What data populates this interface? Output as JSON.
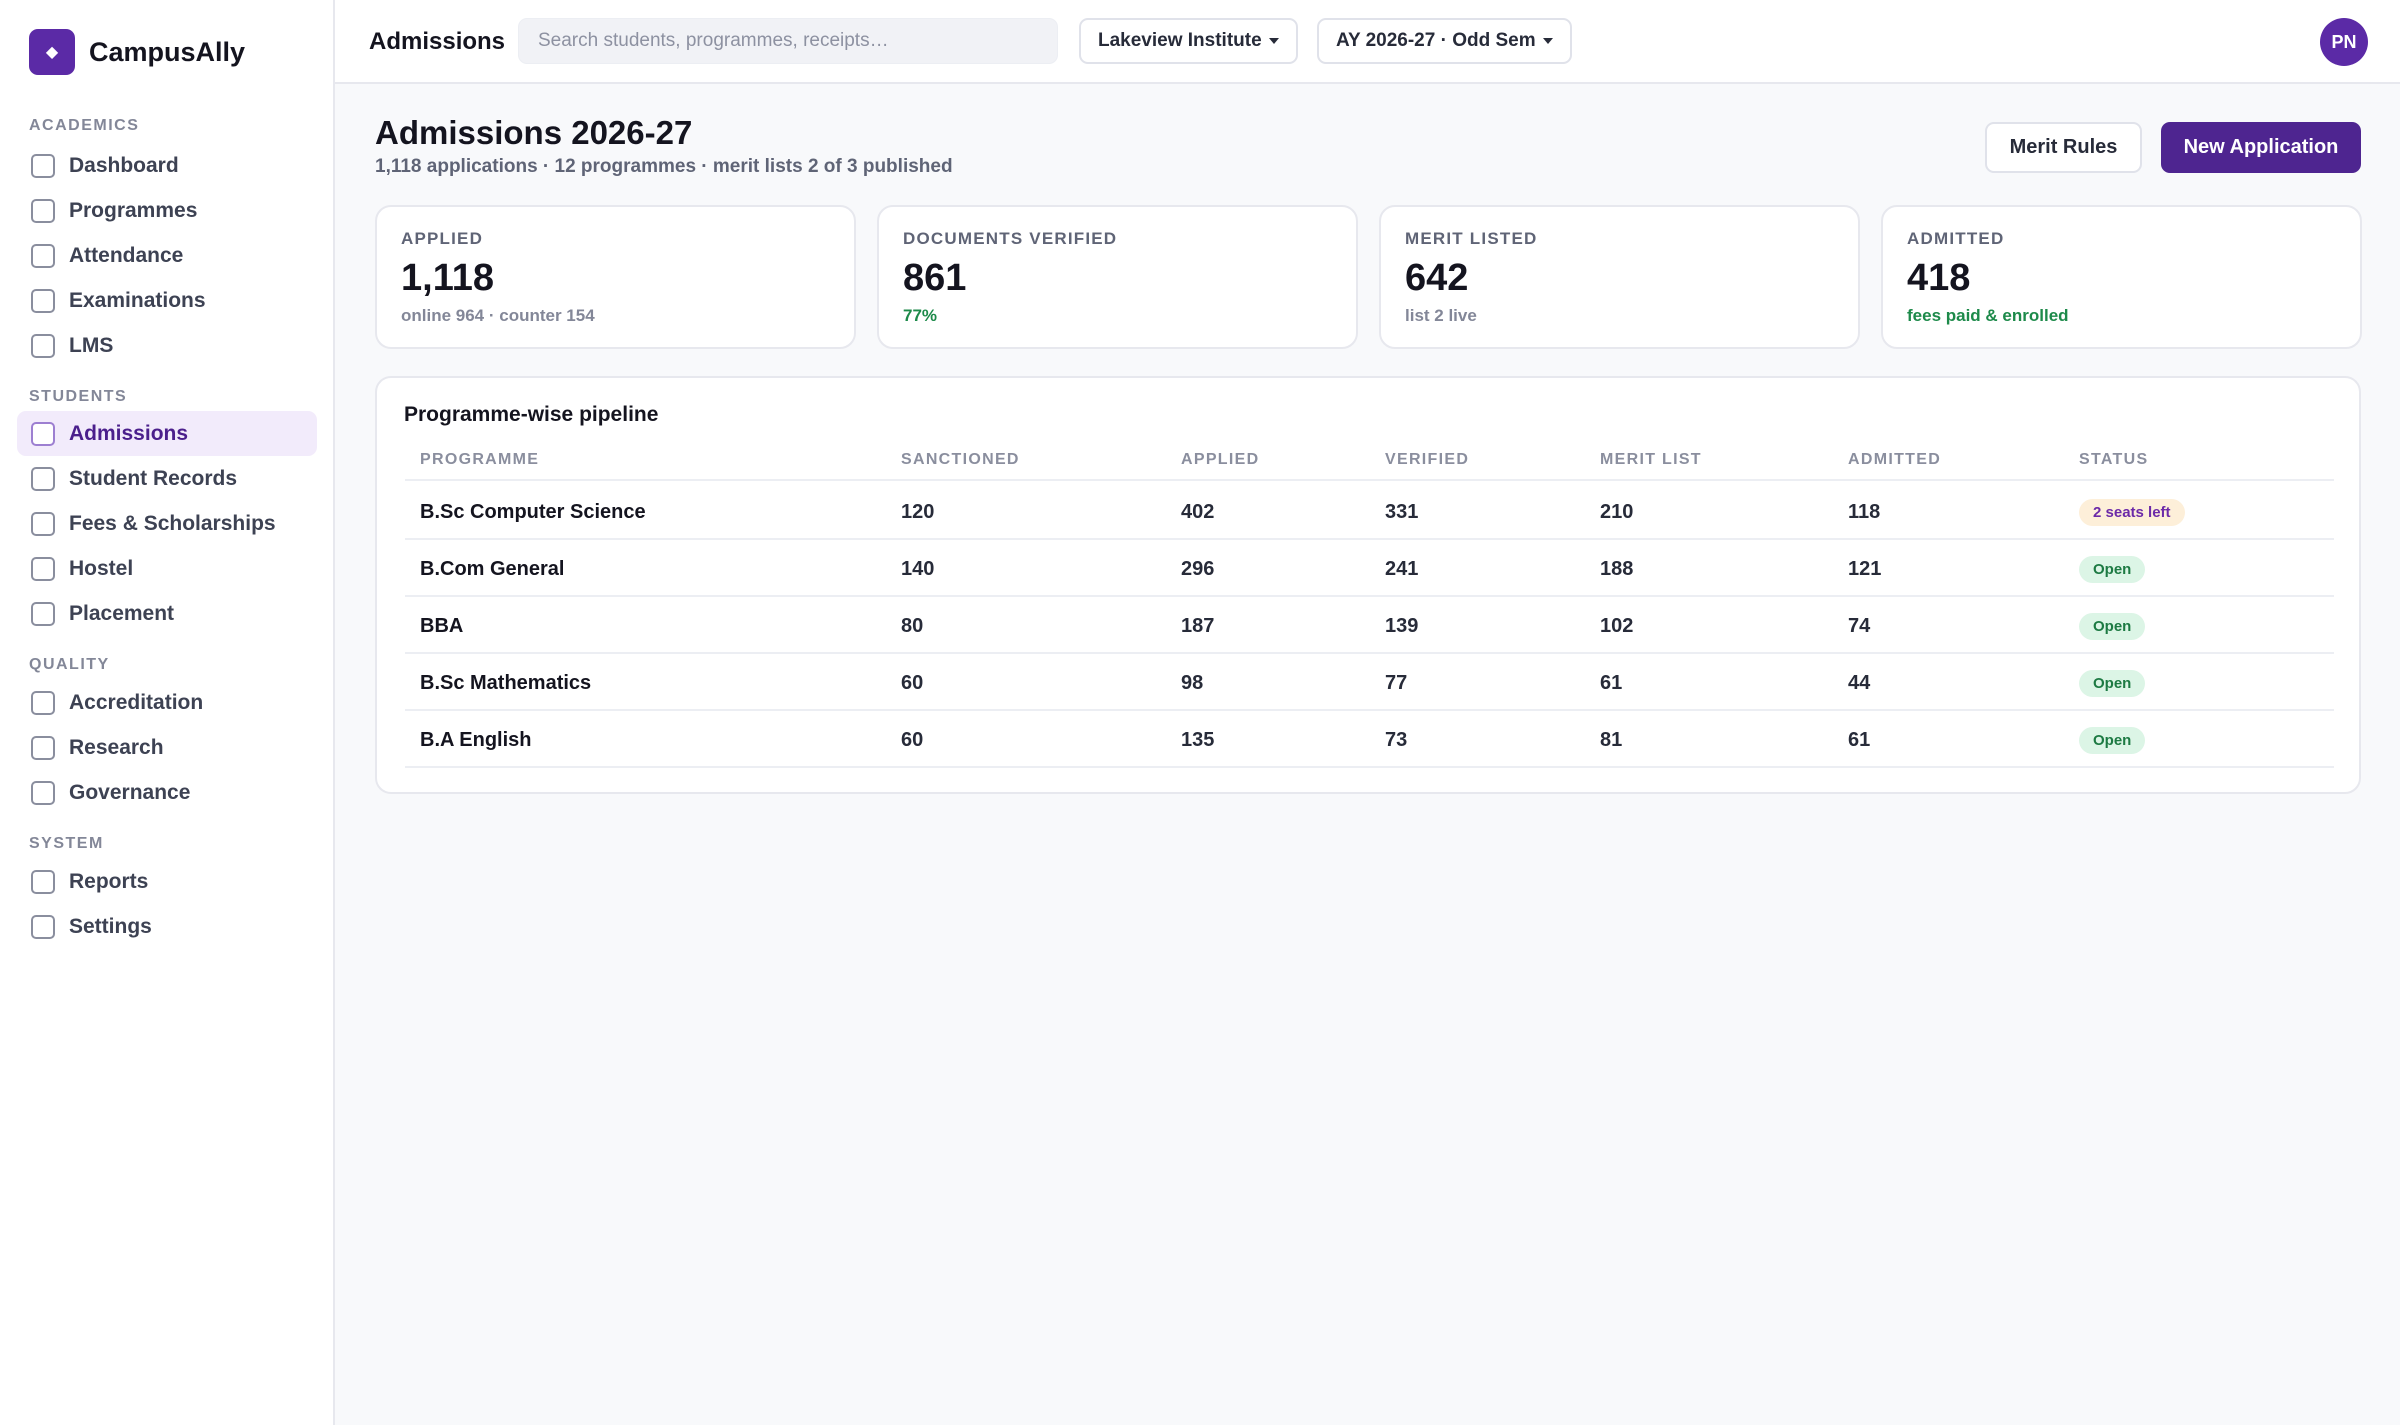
{
  "brand": {
    "name": "CampusAlly",
    "logo_glyph": "◆"
  },
  "sidebar": {
    "sections": [
      {
        "title": "ACADEMICS",
        "items": [
          "Dashboard",
          "Programmes",
          "Attendance",
          "Examinations",
          "LMS"
        ]
      },
      {
        "title": "STUDENTS",
        "items": [
          "Admissions",
          "Student Records",
          "Fees & Scholarships",
          "Hostel",
          "Placement"
        ]
      },
      {
        "title": "QUALITY",
        "items": [
          "Accreditation",
          "Research",
          "Governance"
        ]
      },
      {
        "title": "SYSTEM",
        "items": [
          "Reports",
          "Settings"
        ]
      }
    ],
    "active_item": "Admissions"
  },
  "topbar": {
    "title": "Admissions",
    "search_placeholder": "Search students, programmes, receipts…",
    "institution": "Lakeview Institute",
    "term": "AY 2026-27 · Odd Sem",
    "avatar_initials": "PN"
  },
  "page": {
    "title": "Admissions 2026-27",
    "subtitle": "1,118 applications · 12 programmes · merit lists 2 of 3 published",
    "merit_rules_label": "Merit Rules",
    "new_application_label": "New Application"
  },
  "stats": [
    {
      "label": "APPLIED",
      "value": "1,118",
      "foot": "online 964 · counter 154",
      "foot_tone": "muted"
    },
    {
      "label": "DOCUMENTS VERIFIED",
      "value": "861",
      "foot": "77%",
      "foot_tone": "green"
    },
    {
      "label": "MERIT LISTED",
      "value": "642",
      "foot": "list 2 live",
      "foot_tone": "muted"
    },
    {
      "label": "ADMITTED",
      "value": "418",
      "foot": "fees paid & enrolled",
      "foot_tone": "green"
    }
  ],
  "pipeline": {
    "title": "Programme-wise pipeline",
    "columns": [
      "PROGRAMME",
      "SANCTIONED",
      "APPLIED",
      "VERIFIED",
      "MERIT LIST",
      "ADMITTED",
      "STATUS"
    ],
    "rows": [
      {
        "programme": "B.Sc Computer Science",
        "sanctioned": "120",
        "applied": "402",
        "verified": "331",
        "merit": "210",
        "admitted": "118",
        "status": "2 seats left",
        "tone": "warn"
      },
      {
        "programme": "B.Com General",
        "sanctioned": "140",
        "applied": "296",
        "verified": "241",
        "merit": "188",
        "admitted": "121",
        "status": "Open",
        "tone": "open"
      },
      {
        "programme": "BBA",
        "sanctioned": "80",
        "applied": "187",
        "verified": "139",
        "merit": "102",
        "admitted": "74",
        "status": "Open",
        "tone": "open"
      },
      {
        "programme": "B.Sc Mathematics",
        "sanctioned": "60",
        "applied": "98",
        "verified": "77",
        "merit": "61",
        "admitted": "44",
        "status": "Open",
        "tone": "open"
      },
      {
        "programme": "B.A English",
        "sanctioned": "60",
        "applied": "135",
        "verified": "73",
        "merit": "81",
        "admitted": "61",
        "status": "Open",
        "tone": "open"
      }
    ]
  },
  "colors": {
    "accent": "#4e2590",
    "accent_light": "#f2ebfb",
    "success": "#1d8a4a",
    "warn_bg": "#fdefd9"
  }
}
